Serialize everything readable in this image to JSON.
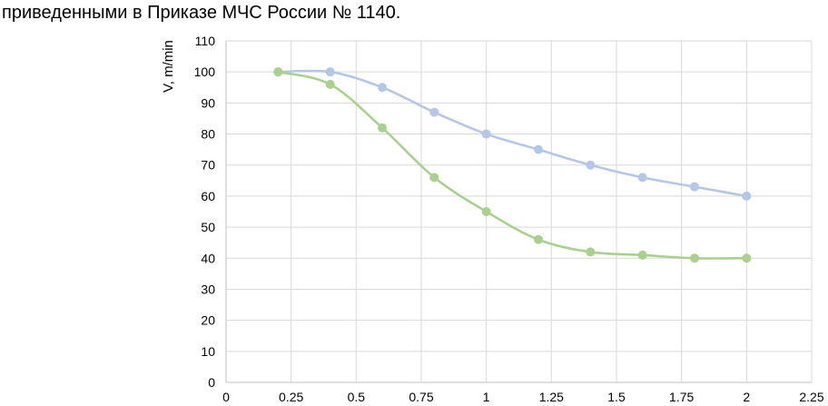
{
  "text": {
    "caption": "приведенными в Приказе МЧС России № 1140."
  },
  "chart_data": {
    "type": "line",
    "title": "",
    "xlabel": "",
    "ylabel": "V, m/min",
    "xlim": [
      0,
      2.25
    ],
    "ylim": [
      0,
      110
    ],
    "xticks": [
      "0",
      "0.25",
      "0.5",
      "0.75",
      "1",
      "1.25",
      "1.5",
      "1.75",
      "2",
      "2.25"
    ],
    "yticks": [
      "0",
      "10",
      "20",
      "30",
      "40",
      "50",
      "60",
      "70",
      "80",
      "90",
      "100",
      "110"
    ],
    "grid": true,
    "legend": "none",
    "smooth": true,
    "series": [
      {
        "color": "#b4c7e7",
        "x": [
          0.2,
          0.4,
          0.6,
          0.8,
          1.0,
          1.2,
          1.4,
          1.6,
          1.8,
          2.0
        ],
        "y": [
          100,
          100,
          95,
          87,
          80,
          75,
          70,
          66,
          63,
          60
        ]
      },
      {
        "color": "#a9d18e",
        "x": [
          0.2,
          0.4,
          0.6,
          0.8,
          1.0,
          1.2,
          1.4,
          1.6,
          1.8,
          2.0
        ],
        "y": [
          100,
          96,
          82,
          66,
          55,
          46,
          42,
          41,
          40,
          40
        ]
      }
    ]
  }
}
